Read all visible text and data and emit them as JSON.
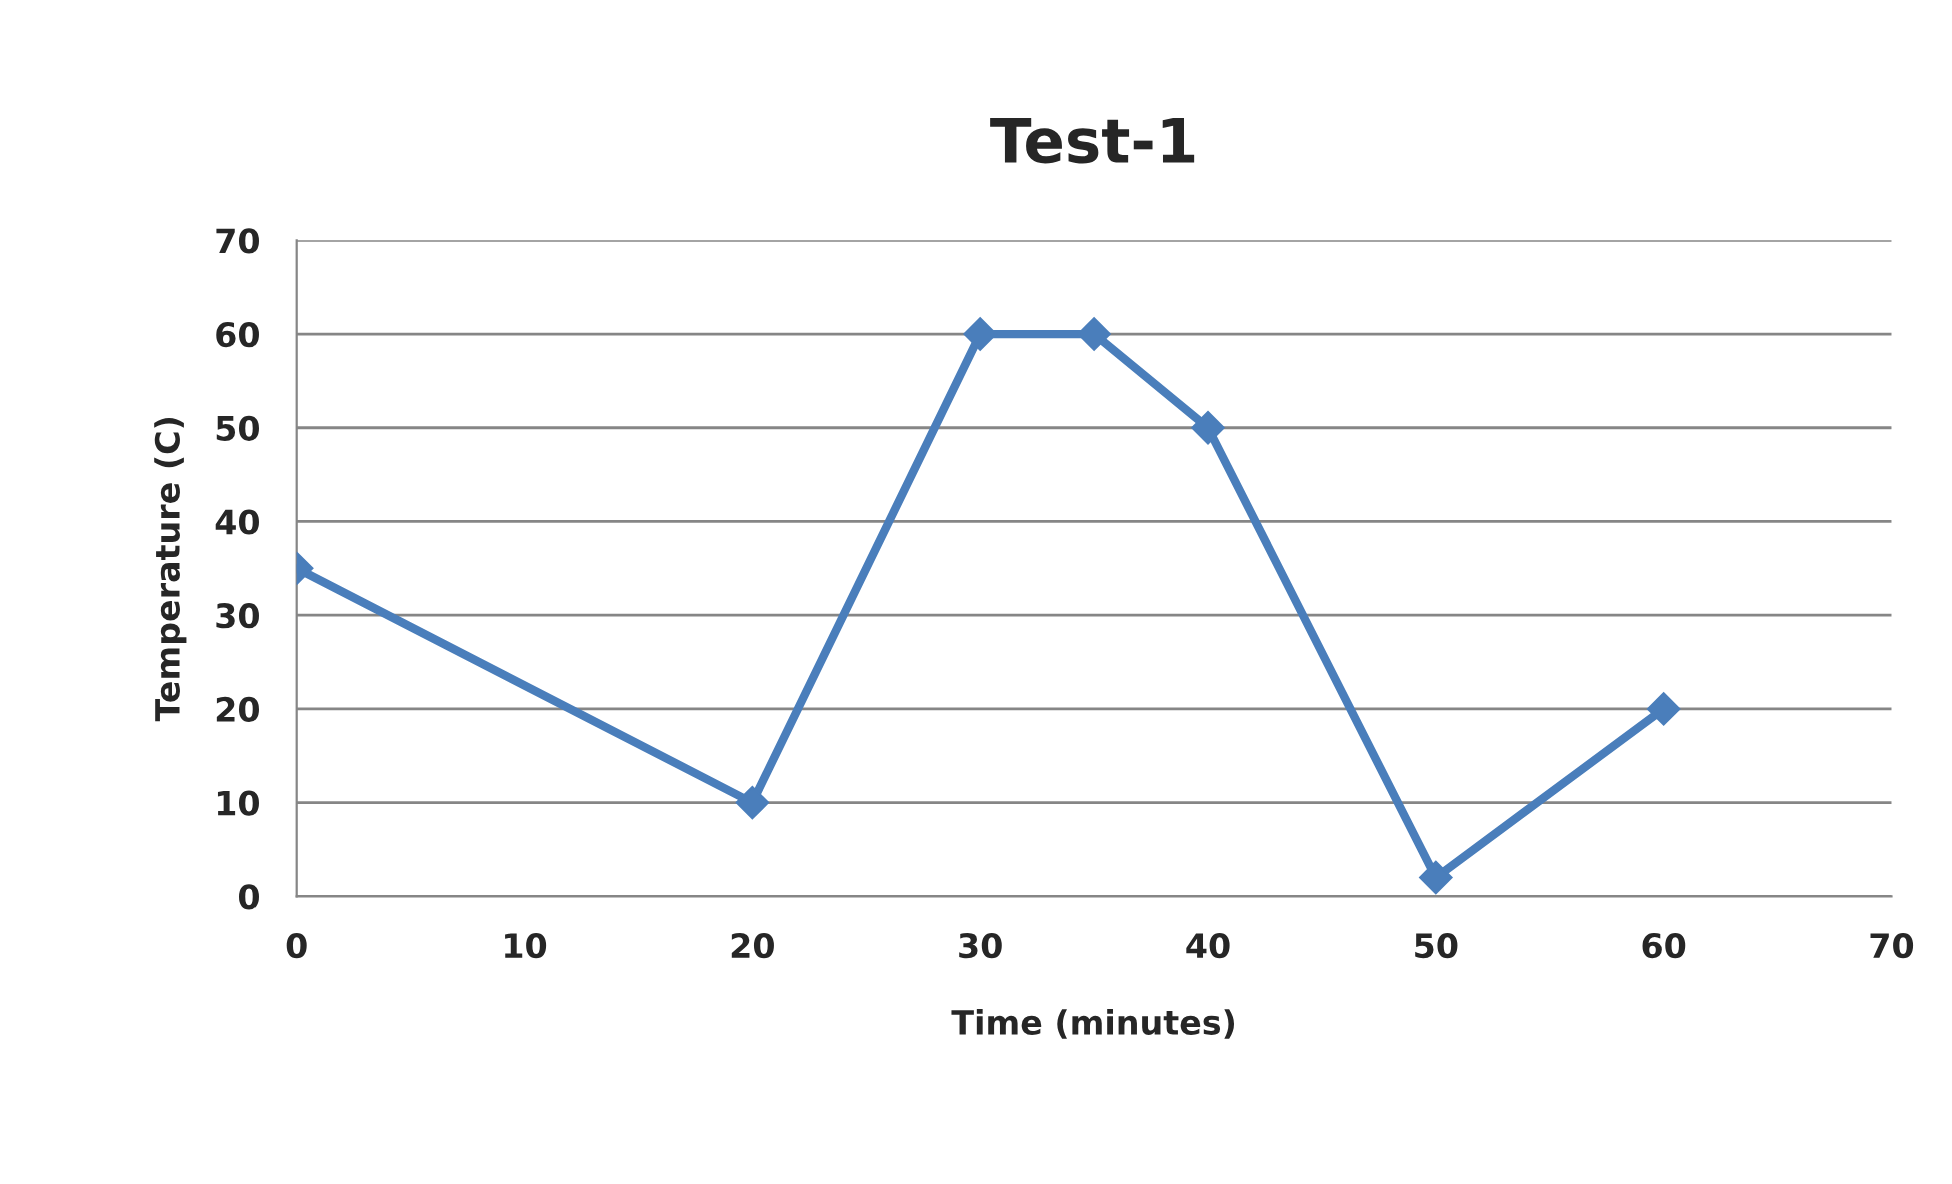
{
  "chart_data": {
    "type": "line",
    "title": "Test-1",
    "xlabel": "Time (minutes)",
    "ylabel": "Temperature (C)",
    "series": [
      {
        "color": "#4a7ebb",
        "x": [
          0,
          20,
          30,
          35,
          40,
          50,
          60
        ],
        "values": [
          35,
          10,
          60,
          60,
          50,
          2,
          20
        ]
      }
    ],
    "xlim": [
      0,
      70
    ],
    "xticks": [
      0,
      10,
      20,
      30,
      40,
      50,
      60,
      70
    ],
    "ylim": [
      0,
      70
    ],
    "yticks": [
      0,
      10,
      20,
      30,
      40,
      50,
      60,
      70
    ],
    "grid": "y",
    "marker": "diamond",
    "line_style": "solid"
  }
}
